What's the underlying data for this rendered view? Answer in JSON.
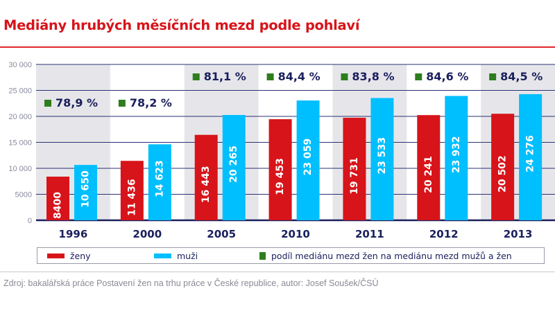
{
  "chart_data": {
    "type": "bar",
    "title": "Mediány hrubých měsíčních mezd podle pohlaví",
    "categories": [
      "1996",
      "2000",
      "2005",
      "2010",
      "2011",
      "2012",
      "2013"
    ],
    "series": [
      {
        "name": "ženy",
        "color": "#d7141a",
        "values": [
          8400,
          11436,
          16443,
          19453,
          19731,
          20241,
          20502
        ],
        "labels": [
          "8400",
          "11 436",
          "16 443",
          "19 453",
          "19 731",
          "20 241",
          "20 502"
        ]
      },
      {
        "name": "muži",
        "color": "#00bfff",
        "values": [
          10650,
          14623,
          20265,
          23059,
          23533,
          23932,
          24276
        ],
        "labels": [
          "10 650",
          "14 623",
          "20 265",
          "23 059",
          "23 533",
          "23 932",
          "24 276"
        ]
      }
    ],
    "ratio": {
      "name": "podíl mediánu mezd žen na mediánu mezd mužů a žen",
      "color": "#2e7d1e",
      "labels": [
        "78,9 %",
        "78,2 %",
        "81,1 %",
        "84,4 %",
        "83,8 %",
        "84,6 %",
        "84,5 %"
      ]
    },
    "yticks": [
      0,
      5000,
      10000,
      15000,
      20000,
      25000,
      30000
    ],
    "ytick_labels": [
      "0",
      "5000",
      "10 000",
      "15 000",
      "20 000",
      "25 000",
      "30 000"
    ],
    "ylim": [
      0,
      30000
    ],
    "grid": true,
    "legend": "bottom"
  },
  "source": "Zdroj: bakalářská práce Postavení žen na trhu práce v České republice, autor: Josef Soušek/ČSÚ"
}
